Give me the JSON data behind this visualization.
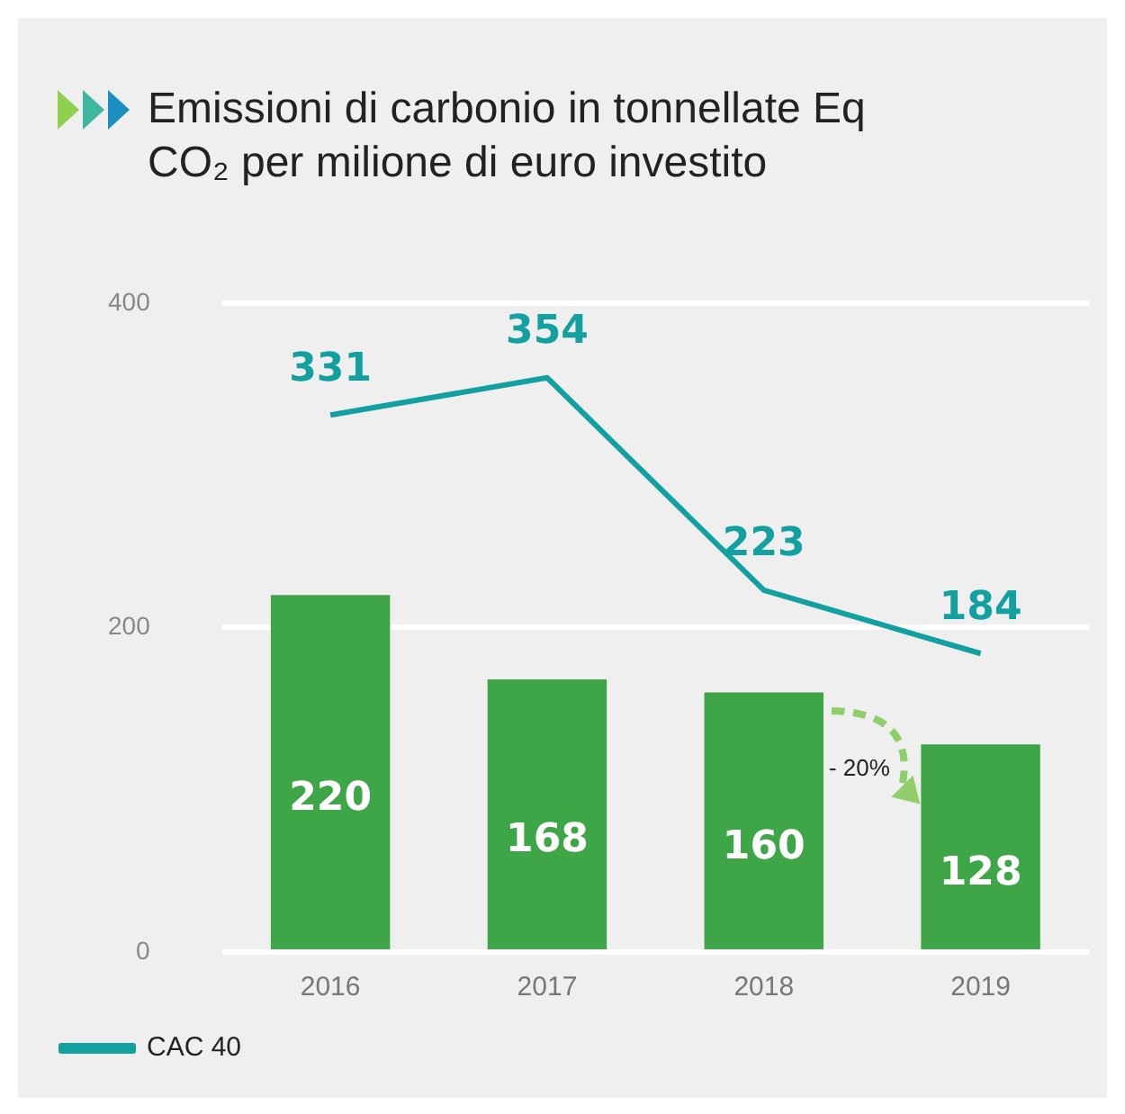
{
  "chart_data": {
    "type": "bar",
    "title": "Emissioni di carbonio in tonnellate Eq CO₂ per milione di euro investito",
    "categories": [
      "2016",
      "2017",
      "2018",
      "2019"
    ],
    "series": [
      {
        "color": "#3fa648",
        "values": [
          220,
          168,
          160,
          128
        ]
      },
      {
        "type": "line",
        "name": "CAC 40",
        "color": "#12a0a0",
        "values": [
          331,
          354,
          223,
          184
        ]
      }
    ],
    "ylim": [
      0,
      400
    ],
    "yticks": [
      0,
      200,
      400
    ],
    "grid": "y",
    "legend": "bottom",
    "marker": "none",
    "data_labels": true,
    "annotations": [
      "- 20%"
    ]
  }
}
